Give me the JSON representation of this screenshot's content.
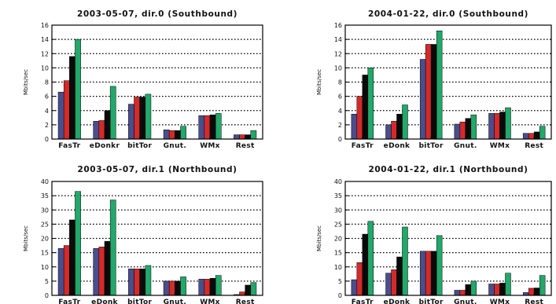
{
  "colors": {
    "series_1": "#4a4e8c",
    "series_2": "#d42a2a",
    "series_3": "#0a0a0a",
    "series_4": "#22a86a",
    "axis": "#000000",
    "grid": "#000000"
  },
  "chart_data": [
    {
      "type": "bar",
      "title": "2003-05-07, dir.0 (Southbound)",
      "ylabel": "Mbits/sec",
      "xlabel": "",
      "categories": [
        "FasTr",
        "eDonkr",
        "bitTor",
        "Gnut.",
        "WMx",
        "Rest"
      ],
      "ylim": [
        0,
        16
      ],
      "yticks": [
        0,
        2,
        4,
        6,
        8,
        10,
        12,
        14,
        16
      ],
      "grid": true,
      "series": [
        {
          "values": [
            6.6,
            2.5,
            4.9,
            1.3,
            3.3,
            0.6
          ]
        },
        {
          "values": [
            8.2,
            2.6,
            5.9,
            1.2,
            3.3,
            0.6
          ]
        },
        {
          "values": [
            11.6,
            4.0,
            5.9,
            1.2,
            3.4,
            0.6
          ]
        },
        {
          "values": [
            14.0,
            7.4,
            6.3,
            1.8,
            3.6,
            1.2
          ]
        }
      ]
    },
    {
      "type": "bar",
      "title": "2004-01-22, dir.0 (Southbound)",
      "ylabel": "Mbits/sec",
      "xlabel": "",
      "categories": [
        "FasTr",
        "eDonk",
        "bitTor",
        "Gnut.",
        "WMx",
        "Rest"
      ],
      "ylim": [
        0,
        16
      ],
      "yticks": [
        0,
        2,
        4,
        6,
        8,
        10,
        12,
        14,
        16
      ],
      "grid": true,
      "series": [
        {
          "values": [
            3.5,
            2.0,
            11.2,
            2.1,
            3.6,
            0.8
          ]
        },
        {
          "values": [
            6.0,
            2.5,
            13.3,
            2.4,
            3.6,
            0.8
          ]
        },
        {
          "values": [
            9.0,
            3.5,
            13.3,
            2.9,
            3.8,
            1.0
          ]
        },
        {
          "values": [
            10.0,
            4.8,
            15.2,
            3.4,
            4.4,
            1.8
          ]
        }
      ]
    },
    {
      "type": "bar",
      "title": "2003-05-07, dir.1 (Northbound)",
      "ylabel": "Mbits/sec",
      "xlabel": "",
      "categories": [
        "FasTr",
        "eDonk",
        "bitTor",
        "Gnut.",
        "WMx",
        "Rest"
      ],
      "ylim": [
        0,
        40
      ],
      "yticks": [
        0,
        5,
        10,
        15,
        20,
        25,
        30,
        35,
        40
      ],
      "grid": true,
      "series": [
        {
          "values": [
            16.5,
            16.5,
            9.3,
            5.0,
            5.7,
            0.3
          ]
        },
        {
          "values": [
            17.5,
            17.0,
            9.3,
            5.0,
            5.7,
            1.2
          ]
        },
        {
          "values": [
            26.5,
            19.0,
            9.3,
            5.0,
            6.0,
            3.6
          ]
        },
        {
          "values": [
            36.5,
            33.5,
            10.5,
            6.5,
            7.0,
            4.5
          ]
        }
      ]
    },
    {
      "type": "bar",
      "title": "2004-01-22, dir.1 (Northbound)",
      "ylabel": "Mbits/sec",
      "xlabel": "",
      "categories": [
        "FasTr",
        "eDonk",
        "bitTor",
        "Gnut.",
        "WMx",
        "Rest"
      ],
      "ylim": [
        0,
        40
      ],
      "yticks": [
        0,
        5,
        10,
        15,
        20,
        25,
        30,
        35,
        40
      ],
      "grid": true,
      "series": [
        {
          "values": [
            5.5,
            7.8,
            15.5,
            1.8,
            4.0,
            1.0
          ]
        },
        {
          "values": [
            11.5,
            9.0,
            15.5,
            1.8,
            4.0,
            2.5
          ]
        },
        {
          "values": [
            21.5,
            13.5,
            15.5,
            3.8,
            4.3,
            2.6
          ]
        },
        {
          "values": [
            26.0,
            24.0,
            21.0,
            5.0,
            7.8,
            7.0
          ]
        }
      ]
    }
  ]
}
